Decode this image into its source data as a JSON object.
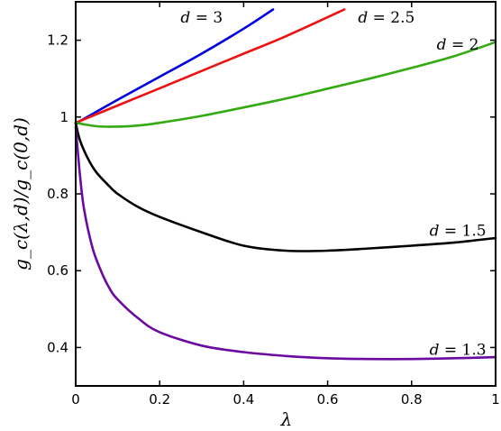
{
  "chart_data": {
    "type": "line",
    "xlabel": "λ",
    "ylabel": "g_c(λ,d)/g_c(0,d)",
    "xlim": [
      0,
      1
    ],
    "ylim": [
      0.3,
      1.3
    ],
    "x_ticks": [
      {
        "value": 0,
        "label": "0"
      },
      {
        "value": 0.2,
        "label": "0.2"
      },
      {
        "value": 0.4,
        "label": "0.4"
      },
      {
        "value": 0.6,
        "label": "0.6"
      },
      {
        "value": 0.8,
        "label": "0.8"
      },
      {
        "value": 1,
        "label": "1"
      }
    ],
    "y_ticks": [
      {
        "value": 0.4,
        "label": "0.4"
      },
      {
        "value": 0.6,
        "label": "0.6"
      },
      {
        "value": 0.8,
        "label": "0.8"
      },
      {
        "value": 1,
        "label": "1"
      },
      {
        "value": 1.2,
        "label": "1.2"
      }
    ],
    "grid": false,
    "legend": "none",
    "series": [
      {
        "name": "d = 3",
        "d_value": "3",
        "color": "#0000dd",
        "label_at": [
          0.3,
          1.26
        ],
        "x": [
          0,
          0.1,
          0.2,
          0.3,
          0.4,
          0.47
        ],
        "y": [
          0.983,
          1.045,
          1.105,
          1.165,
          1.23,
          1.28
        ]
      },
      {
        "name": "d = 2.5",
        "d_value": "2.5",
        "color": "#ee1111",
        "label_at": [
          0.74,
          1.26
        ],
        "x": [
          0,
          0.1,
          0.2,
          0.3,
          0.4,
          0.5,
          0.64
        ],
        "y": [
          0.985,
          1.03,
          1.075,
          1.12,
          1.165,
          1.21,
          1.28
        ]
      },
      {
        "name": "d = 2",
        "d_value": "2",
        "color": "#33aa11",
        "label_at": [
          0.91,
          1.19
        ],
        "x": [
          0,
          0.05,
          0.1,
          0.15,
          0.2,
          0.3,
          0.4,
          0.5,
          0.6,
          0.7,
          0.8,
          0.9,
          1.0
        ],
        "y": [
          0.985,
          0.976,
          0.975,
          0.978,
          0.985,
          1.003,
          1.025,
          1.048,
          1.074,
          1.1,
          1.128,
          1.158,
          1.195
        ]
      },
      {
        "name": "d = 1.5",
        "d_value": "1.5",
        "color": "#000000",
        "label_at": [
          0.91,
          0.705
        ],
        "x": [
          0,
          0.01,
          0.03,
          0.05,
          0.08,
          0.1,
          0.15,
          0.2,
          0.3,
          0.4,
          0.5,
          0.6,
          0.7,
          0.8,
          0.9,
          1.0
        ],
        "y": [
          0.985,
          0.94,
          0.89,
          0.855,
          0.82,
          0.8,
          0.765,
          0.74,
          0.7,
          0.665,
          0.652,
          0.652,
          0.658,
          0.665,
          0.673,
          0.685
        ]
      },
      {
        "name": "d = 1.3",
        "d_value": "1.3",
        "color": "#6a0aa0",
        "label_at": [
          0.91,
          0.395
        ],
        "x": [
          0,
          0.01,
          0.02,
          0.04,
          0.06,
          0.08,
          0.1,
          0.15,
          0.2,
          0.3,
          0.4,
          0.5,
          0.6,
          0.7,
          0.8,
          0.9,
          1.0
        ],
        "y": [
          0.975,
          0.85,
          0.76,
          0.66,
          0.6,
          0.555,
          0.525,
          0.475,
          0.44,
          0.405,
          0.388,
          0.378,
          0.372,
          0.37,
          0.37,
          0.372,
          0.375
        ]
      }
    ]
  }
}
